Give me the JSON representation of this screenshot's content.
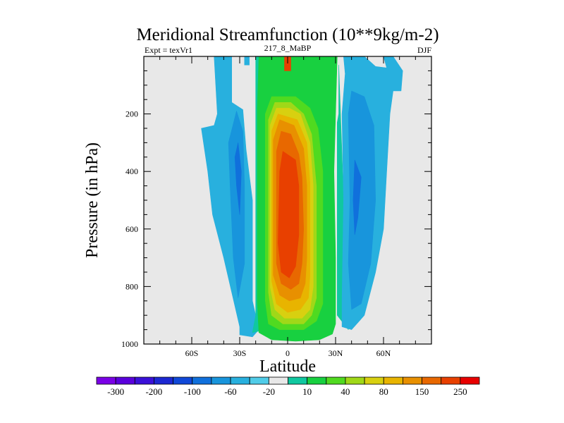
{
  "chart_data": {
    "type": "heatmap",
    "title": "Meridional Streamfunction (10**9kg/m-2)",
    "subtitle_left": "Expt = texVr1",
    "subtitle_center": "217_8_MaBP",
    "subtitle_right": "DJF",
    "xlabel": "Latitude",
    "ylabel": "Pressure (in hPa)",
    "xlim": [
      -90,
      90
    ],
    "ylim": [
      0,
      1000
    ],
    "y_inverted": true,
    "x_ticks": [
      {
        "value": -60,
        "label": "60S"
      },
      {
        "value": -30,
        "label": "30S"
      },
      {
        "value": 0,
        "label": "0"
      },
      {
        "value": 30,
        "label": "30N"
      },
      {
        "value": 60,
        "label": "60N"
      }
    ],
    "y_ticks": [
      {
        "value": 200,
        "label": "200"
      },
      {
        "value": 400,
        "label": "400"
      },
      {
        "value": 600,
        "label": "600"
      },
      {
        "value": 800,
        "label": "800"
      },
      {
        "value": 1000,
        "label": "1000"
      }
    ],
    "missing_color": "#e8e8e8",
    "colorbar": {
      "colors": [
        "#7a00e6",
        "#5a00dc",
        "#3a10d8",
        "#1c28d2",
        "#1048d8",
        "#1070dc",
        "#1895dc",
        "#28b0de",
        "#50cce8",
        "#e8e8e8",
        "#10c8a0",
        "#18d040",
        "#50da20",
        "#a0d818",
        "#d8d010",
        "#e8b400",
        "#e89000",
        "#e86800",
        "#e84000",
        "#e80000"
      ],
      "labels": [
        "-300",
        "-200",
        "-100",
        "-60",
        "-20",
        "10",
        "40",
        "80",
        "150",
        "250"
      ],
      "levels": [
        -300,
        -250,
        -200,
        -150,
        -100,
        -80,
        -60,
        -40,
        -20,
        -10,
        0,
        10,
        20,
        40,
        60,
        80,
        100,
        150,
        200,
        250
      ]
    },
    "regions": [
      {
        "level": -20,
        "color": "#28b0de",
        "polygon": [
          [
            -35,
            0
          ],
          [
            -35,
            160
          ],
          [
            -28,
            185
          ],
          [
            -26,
            325
          ],
          [
            -22,
            500
          ],
          [
            -22,
            850
          ],
          [
            -18,
            950
          ],
          [
            -22,
            975
          ],
          [
            -30,
            968
          ],
          [
            -30,
            940
          ],
          [
            -40,
            700
          ],
          [
            -47,
            550
          ],
          [
            -50,
            400
          ],
          [
            -54,
            250
          ],
          [
            -46,
            240
          ],
          [
            -44,
            200
          ],
          [
            -46,
            0
          ]
        ]
      },
      {
        "level": -20,
        "color": "#28b0de",
        "polygon": [
          [
            -27,
            0
          ],
          [
            -24,
            0
          ],
          [
            -24,
            30
          ],
          [
            -27,
            30
          ]
        ]
      },
      {
        "level": -40,
        "color": "#1895dc",
        "polygon": [
          [
            -32,
            190
          ],
          [
            -28,
            260
          ],
          [
            -27,
            450
          ],
          [
            -27,
            720
          ],
          [
            -31,
            840
          ],
          [
            -34,
            700
          ],
          [
            -36,
            450
          ],
          [
            -37,
            300
          ]
        ]
      },
      {
        "level": -60,
        "color": "#1070dc",
        "polygon": [
          [
            -31,
            300
          ],
          [
            -29,
            400
          ],
          [
            -30,
            550
          ],
          [
            -32,
            450
          ],
          [
            -33,
            350
          ]
        ]
      },
      {
        "level": 10,
        "color": "#10c8a0",
        "polygon": [
          [
            -20,
            0
          ],
          [
            -20,
            900
          ],
          [
            -22,
            960
          ],
          [
            -14,
            950
          ],
          [
            -10,
            0
          ]
        ]
      },
      {
        "level": 10,
        "color": "#10c8a0",
        "polygon": [
          [
            32,
            30
          ],
          [
            32,
            200
          ],
          [
            31,
            230
          ],
          [
            31,
            900
          ],
          [
            38,
            950
          ]
        ]
      },
      {
        "level": 20,
        "color": "#18d040",
        "polygon": [
          [
            -10,
            0
          ],
          [
            -18,
            0
          ],
          [
            -19,
            180
          ],
          [
            -19,
            850
          ],
          [
            -18,
            960
          ],
          [
            -10,
            985
          ],
          [
            5,
            990
          ],
          [
            20,
            985
          ],
          [
            28,
            965
          ],
          [
            30,
            930
          ],
          [
            30,
            700
          ],
          [
            29,
            400
          ],
          [
            30,
            200
          ],
          [
            31,
            0
          ],
          [
            25,
            0
          ]
        ]
      },
      {
        "level": 40,
        "color": "#50da20",
        "polygon": [
          [
            -10,
            140
          ],
          [
            -14,
            200
          ],
          [
            -14,
            850
          ],
          [
            -12,
            930
          ],
          [
            -5,
            950
          ],
          [
            10,
            950
          ],
          [
            18,
            920
          ],
          [
            22,
            860
          ],
          [
            22,
            400
          ],
          [
            19,
            250
          ],
          [
            14,
            180
          ],
          [
            5,
            140
          ]
        ]
      },
      {
        "level": 60,
        "color": "#a0d818",
        "polygon": [
          [
            -8,
            160
          ],
          [
            -12,
            220
          ],
          [
            -12,
            820
          ],
          [
            -10,
            900
          ],
          [
            -3,
            930
          ],
          [
            10,
            930
          ],
          [
            15,
            900
          ],
          [
            18,
            840
          ],
          [
            18,
            450
          ],
          [
            15,
            270
          ],
          [
            10,
            200
          ],
          [
            2,
            160
          ]
        ]
      },
      {
        "level": 80,
        "color": "#d8d010",
        "polygon": [
          [
            -7,
            180
          ],
          [
            -11,
            240
          ],
          [
            -11,
            800
          ],
          [
            -8,
            880
          ],
          [
            -2,
            910
          ],
          [
            9,
            910
          ],
          [
            14,
            880
          ],
          [
            16,
            800
          ],
          [
            16,
            450
          ],
          [
            14,
            300
          ],
          [
            8,
            200
          ],
          [
            1,
            180
          ]
        ]
      },
      {
        "level": 100,
        "color": "#e8b400",
        "polygon": [
          [
            -6,
            200
          ],
          [
            -10,
            260
          ],
          [
            -10,
            780
          ],
          [
            -7,
            860
          ],
          [
            0,
            890
          ],
          [
            8,
            880
          ],
          [
            13,
            840
          ],
          [
            14,
            760
          ],
          [
            14,
            440
          ],
          [
            12,
            300
          ],
          [
            6,
            220
          ]
        ]
      },
      {
        "level": 150,
        "color": "#e89000",
        "polygon": [
          [
            -5,
            220
          ],
          [
            -9,
            290
          ],
          [
            -9,
            760
          ],
          [
            -5,
            830
          ],
          [
            1,
            850
          ],
          [
            8,
            840
          ],
          [
            11,
            790
          ],
          [
            12,
            700
          ],
          [
            12,
            450
          ],
          [
            10,
            320
          ],
          [
            4,
            240
          ]
        ]
      },
      {
        "level": 200,
        "color": "#e86800",
        "polygon": [
          [
            -4,
            260
          ],
          [
            -7,
            330
          ],
          [
            -7,
            720
          ],
          [
            -4,
            790
          ],
          [
            2,
            810
          ],
          [
            7,
            790
          ],
          [
            9,
            720
          ],
          [
            10,
            600
          ],
          [
            9,
            420
          ],
          [
            7,
            340
          ],
          [
            2,
            270
          ]
        ]
      },
      {
        "level": 250,
        "color": "#e84000",
        "polygon": [
          [
            -3,
            330
          ],
          [
            -5,
            400
          ],
          [
            -6,
            650
          ],
          [
            -4,
            750
          ],
          [
            1,
            770
          ],
          [
            5,
            730
          ],
          [
            7,
            620
          ],
          [
            7,
            450
          ],
          [
            5,
            360
          ]
        ]
      },
      {
        "level": 250,
        "color": "#e84000",
        "polygon": [
          [
            -2,
            0
          ],
          [
            -2,
            50
          ],
          [
            2,
            50
          ],
          [
            2,
            0
          ]
        ]
      },
      {
        "level": -20,
        "color": "#28b0de",
        "polygon": [
          [
            35,
            0
          ],
          [
            36,
            60
          ],
          [
            34,
            200
          ],
          [
            35,
            500
          ],
          [
            34,
            850
          ],
          [
            34,
            940
          ],
          [
            40,
            950
          ],
          [
            48,
            900
          ],
          [
            55,
            750
          ],
          [
            60,
            600
          ],
          [
            62,
            400
          ],
          [
            64,
            200
          ],
          [
            66,
            120
          ],
          [
            71,
            120
          ],
          [
            72,
            50
          ],
          [
            66,
            0
          ],
          [
            60,
            0
          ],
          [
            62,
            40
          ],
          [
            55,
            35
          ],
          [
            48,
            0
          ]
        ]
      },
      {
        "level": -40,
        "color": "#1895dc",
        "polygon": [
          [
            40,
            120
          ],
          [
            38,
            200
          ],
          [
            39,
            500
          ],
          [
            38,
            720
          ],
          [
            40,
            880
          ],
          [
            46,
            860
          ],
          [
            52,
            720
          ],
          [
            55,
            500
          ],
          [
            54,
            240
          ],
          [
            48,
            140
          ]
        ]
      },
      {
        "level": -60,
        "color": "#1070dc",
        "polygon": [
          [
            42,
            360
          ],
          [
            41,
            500
          ],
          [
            42,
            620
          ],
          [
            44,
            560
          ],
          [
            46,
            420
          ]
        ]
      }
    ]
  }
}
